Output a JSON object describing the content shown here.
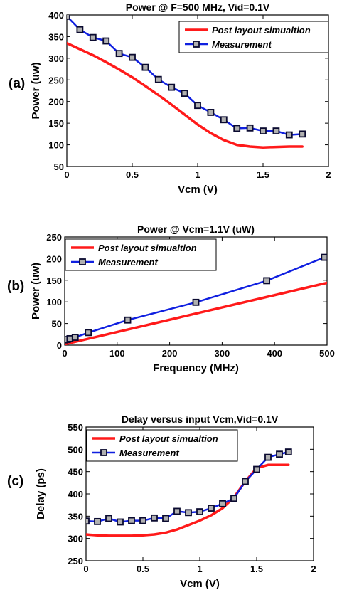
{
  "colors": {
    "simulation": "#ff1a1a",
    "measurement": "#1020e0",
    "marker_fill": "#b0b0b0",
    "marker_edge": "#0a0a30",
    "axis": "#000000"
  },
  "chart_data": [
    {
      "panel": "(a)",
      "type": "line",
      "title": "Power @ F=500 MHz, Vid=0.1V",
      "xlabel": "Vcm (V)",
      "ylabel": "Power (uw)",
      "xlim": [
        0,
        2
      ],
      "ylim": [
        50,
        400
      ],
      "xticks": [
        0,
        0.5,
        1,
        1.5,
        2
      ],
      "xtick_labels": [
        "0",
        "0.5",
        "1",
        "1.5",
        "2"
      ],
      "yticks": [
        50,
        100,
        150,
        200,
        250,
        300,
        350,
        400
      ],
      "ytick_labels": [
        "50",
        "100",
        "150",
        "200",
        "250",
        "300",
        "350",
        "400"
      ],
      "grid": false,
      "legend_position": "top-right",
      "series": [
        {
          "name": "Post layout simualtion",
          "style": "line",
          "x": [
            0,
            0.1,
            0.2,
            0.3,
            0.4,
            0.5,
            0.6,
            0.7,
            0.8,
            0.9,
            1.0,
            1.1,
            1.2,
            1.3,
            1.4,
            1.5,
            1.6,
            1.7,
            1.8
          ],
          "y": [
            335,
            321,
            307,
            291,
            274,
            256,
            236,
            215,
            193,
            170,
            147,
            127,
            111,
            100,
            96,
            94,
            95,
            96,
            96
          ]
        },
        {
          "name": "Measurement",
          "style": "line-square",
          "x": [
            0,
            0.1,
            0.2,
            0.3,
            0.4,
            0.5,
            0.6,
            0.7,
            0.8,
            0.9,
            1.0,
            1.1,
            1.2,
            1.3,
            1.4,
            1.5,
            1.6,
            1.7,
            1.8
          ],
          "y": [
            397,
            366,
            348,
            340,
            311,
            302,
            279,
            251,
            233,
            219,
            191,
            175,
            158,
            138,
            139,
            132,
            132,
            123,
            125
          ]
        }
      ]
    },
    {
      "panel": "(b)",
      "type": "line",
      "title": "Power @ Vcm=1.1V (uW)",
      "xlabel": "Frequency (MHz)",
      "ylabel": "Power (uw)",
      "xlim": [
        0,
        500
      ],
      "ylim": [
        0,
        250
      ],
      "xticks": [
        0,
        100,
        200,
        300,
        400,
        500
      ],
      "xtick_labels": [
        "0",
        "100",
        "200",
        "300",
        "400",
        "500"
      ],
      "yticks": [
        0,
        50,
        100,
        150,
        200,
        250
      ],
      "ytick_labels": [
        "0",
        "50",
        "100",
        "150",
        "200",
        "250"
      ],
      "grid": false,
      "legend_position": "top-left",
      "series": [
        {
          "name": "Post layout simualtion",
          "style": "line",
          "x": [
            0,
            500
          ],
          "y": [
            2,
            144
          ]
        },
        {
          "name": "Measurement",
          "style": "line-square",
          "x": [
            0,
            5,
            10,
            20,
            45,
            120,
            250,
            385,
            495
          ],
          "y": [
            12,
            13,
            15,
            18,
            29,
            58,
            99,
            149,
            203
          ]
        }
      ]
    },
    {
      "panel": "(c)",
      "type": "line",
      "title": "Delay versus input Vcm,Vid=0.1V",
      "xlabel": "Vcm (V)",
      "ylabel": "Delay (ps)",
      "xlim": [
        0,
        2
      ],
      "ylim": [
        250,
        550
      ],
      "xticks": [
        0,
        0.5,
        1,
        1.5,
        2
      ],
      "xtick_labels": [
        "0",
        "0.5",
        "1",
        "1.5",
        "2"
      ],
      "yticks": [
        250,
        300,
        350,
        400,
        450,
        500,
        550
      ],
      "ytick_labels": [
        "250",
        "300",
        "350",
        "400",
        "450",
        "500",
        "550"
      ],
      "grid": false,
      "legend_position": "top-left",
      "series": [
        {
          "name": "Post layout simualtion",
          "style": "line",
          "x": [
            0,
            0.1,
            0.2,
            0.3,
            0.4,
            0.5,
            0.6,
            0.7,
            0.8,
            0.9,
            1.0,
            1.1,
            1.2,
            1.3,
            1.4,
            1.5,
            1.6,
            1.7,
            1.78
          ],
          "y": [
            309,
            307,
            306,
            306,
            306,
            307,
            309,
            313,
            320,
            330,
            340,
            352,
            368,
            392,
            428,
            458,
            465,
            465,
            465
          ]
        },
        {
          "name": "Measurement",
          "style": "line-square",
          "x": [
            0,
            0.1,
            0.2,
            0.3,
            0.4,
            0.5,
            0.6,
            0.7,
            0.8,
            0.9,
            1.0,
            1.1,
            1.2,
            1.3,
            1.4,
            1.5,
            1.6,
            1.7,
            1.78
          ],
          "y": [
            339,
            338,
            345,
            337,
            340,
            340,
            346,
            345,
            361,
            358,
            360,
            368,
            378,
            390,
            428,
            455,
            482,
            489,
            494
          ]
        }
      ]
    }
  ]
}
